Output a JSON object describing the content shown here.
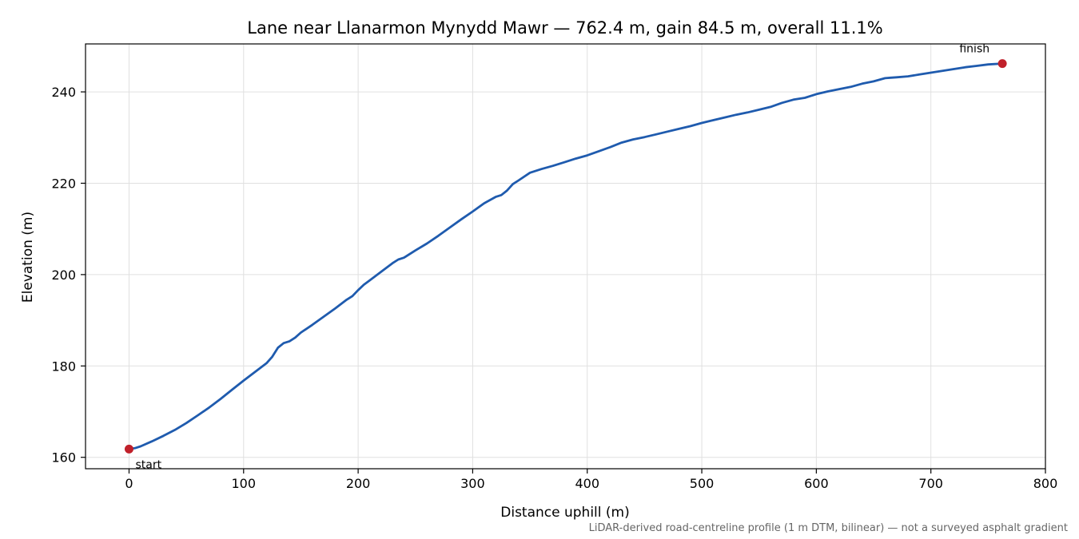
{
  "chart_data": {
    "type": "line",
    "title": "Lane near Llanarmon Mynydd Mawr — 762.4 m, gain 84.5 m, overall 11.1%",
    "xlabel": "Distance uphill (m)",
    "ylabel": "Elevation (m)",
    "xlim": [
      -38,
      800
    ],
    "ylim": [
      157.5,
      250.5
    ],
    "xticks": [
      0,
      100,
      200,
      300,
      400,
      500,
      600,
      700,
      800
    ],
    "yticks": [
      160,
      180,
      200,
      220,
      240
    ],
    "grid": true,
    "legend": "none",
    "series": [
      {
        "x": [
          0,
          5,
          10,
          20,
          30,
          40,
          50,
          60,
          70,
          80,
          90,
          100,
          110,
          120,
          125,
          130,
          135,
          140,
          145,
          150,
          160,
          170,
          180,
          190,
          195,
          200,
          205,
          210,
          220,
          230,
          235,
          240,
          250,
          260,
          270,
          280,
          290,
          300,
          310,
          320,
          325,
          330,
          335,
          340,
          350,
          360,
          370,
          380,
          390,
          400,
          410,
          420,
          430,
          440,
          450,
          460,
          470,
          480,
          490,
          500,
          510,
          520,
          530,
          540,
          550,
          560,
          570,
          580,
          590,
          600,
          610,
          620,
          630,
          640,
          650,
          660,
          665,
          670,
          680,
          690,
          700,
          710,
          720,
          730,
          740,
          750,
          762.4
        ],
        "y": [
          161.8,
          162.0,
          162.4,
          163.5,
          164.7,
          166.0,
          167.5,
          169.2,
          170.9,
          172.8,
          174.8,
          176.8,
          178.7,
          180.6,
          182.0,
          184.0,
          185.0,
          185.4,
          186.2,
          187.3,
          189.0,
          190.8,
          192.6,
          194.5,
          195.3,
          196.6,
          197.8,
          198.7,
          200.6,
          202.5,
          203.3,
          203.7,
          205.3,
          206.8,
          208.5,
          210.3,
          212.1,
          213.8,
          215.6,
          217.0,
          217.4,
          218.4,
          219.8,
          220.6,
          222.3,
          223.1,
          223.8,
          224.6,
          225.4,
          226.1,
          227.0,
          227.9,
          228.9,
          229.6,
          230.1,
          230.7,
          231.3,
          231.9,
          232.5,
          233.2,
          233.8,
          234.4,
          235.0,
          235.5,
          236.1,
          236.7,
          237.6,
          238.3,
          238.7,
          239.5,
          240.1,
          240.6,
          241.1,
          241.8,
          242.3,
          243.0,
          243.1,
          243.2,
          243.4,
          243.8,
          244.2,
          244.6,
          245.0,
          245.4,
          245.7,
          246.0,
          246.2
        ]
      }
    ],
    "annotations": [
      {
        "text": "start",
        "x": 0,
        "y": 161.8
      },
      {
        "text": "finish",
        "x": 762.4,
        "y": 246.2
      }
    ],
    "note": "LiDAR-derived road-centreline profile (1 m DTM, bilinear) — not a surveyed asphalt gradient",
    "colors": {
      "line": "#1f5bae",
      "endpoint": "#c0202a",
      "grid": "#e0e0e0",
      "axis": "#000000",
      "note": "#666666"
    }
  }
}
